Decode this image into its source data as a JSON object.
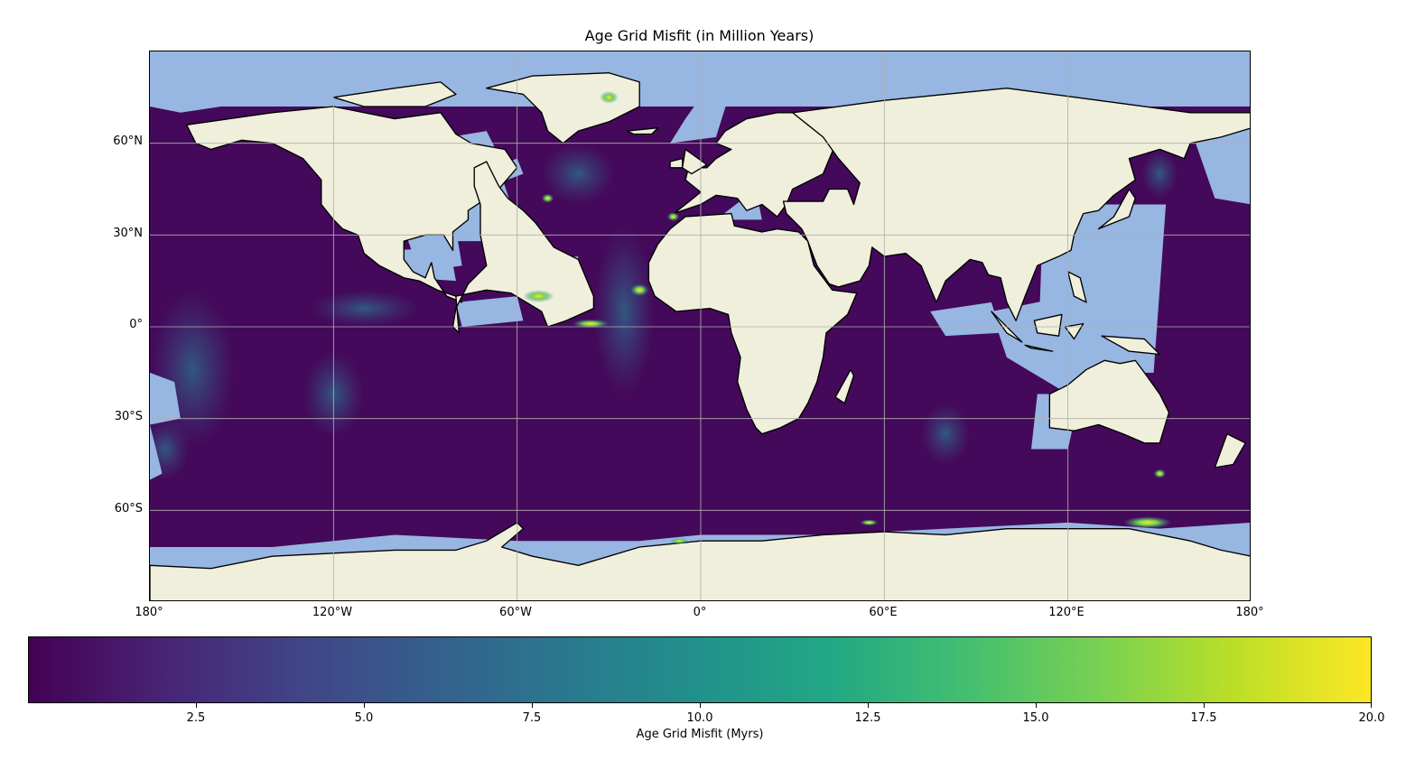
{
  "title": "Age Grid Misfit (in Million Years)",
  "colors": {
    "ocean_background": "#44095a",
    "shelf": "#97b6e1",
    "land": "#efefdb",
    "coast": "#000000",
    "grid": "#b0b0b0"
  },
  "map": {
    "projection": "PlateCarree",
    "lon_range": [
      -180,
      180
    ],
    "lat_range": [
      -90,
      90
    ],
    "lat_ticks": [
      {
        "value": 60,
        "label": "60°N"
      },
      {
        "value": 30,
        "label": "30°N"
      },
      {
        "value": 0,
        "label": "0°"
      },
      {
        "value": -30,
        "label": "30°S"
      },
      {
        "value": -60,
        "label": "60°S"
      }
    ],
    "lon_ticks": [
      {
        "value": -180,
        "label": "180°"
      },
      {
        "value": -120,
        "label": "120°W"
      },
      {
        "value": -60,
        "label": "60°W"
      },
      {
        "value": 0,
        "label": "0°"
      },
      {
        "value": 60,
        "label": "60°E"
      },
      {
        "value": 120,
        "label": "120°E"
      },
      {
        "value": 180,
        "label": "180°"
      }
    ],
    "grid": true,
    "features": [
      "coastlines",
      "borders",
      "land",
      "ocean"
    ]
  },
  "colorbar": {
    "label": "Age Grid Misfit (Myrs)",
    "cmap": "viridis",
    "range": [
      0,
      20
    ],
    "stops": [
      "#440154",
      "#482475",
      "#414487",
      "#355f8d",
      "#2a788e",
      "#21918c",
      "#22a884",
      "#44bf70",
      "#7ad151",
      "#bddf26",
      "#fde725"
    ],
    "ticks": [
      {
        "value": 2.5,
        "label": "2.5"
      },
      {
        "value": 5.0,
        "label": "5.0"
      },
      {
        "value": 7.5,
        "label": "7.5"
      },
      {
        "value": 10.0,
        "label": "10.0"
      },
      {
        "value": 12.5,
        "label": "12.5"
      },
      {
        "value": 15.0,
        "label": "15.0"
      },
      {
        "value": 17.5,
        "label": "17.5"
      },
      {
        "value": 20.0,
        "label": "20.0"
      }
    ]
  }
}
